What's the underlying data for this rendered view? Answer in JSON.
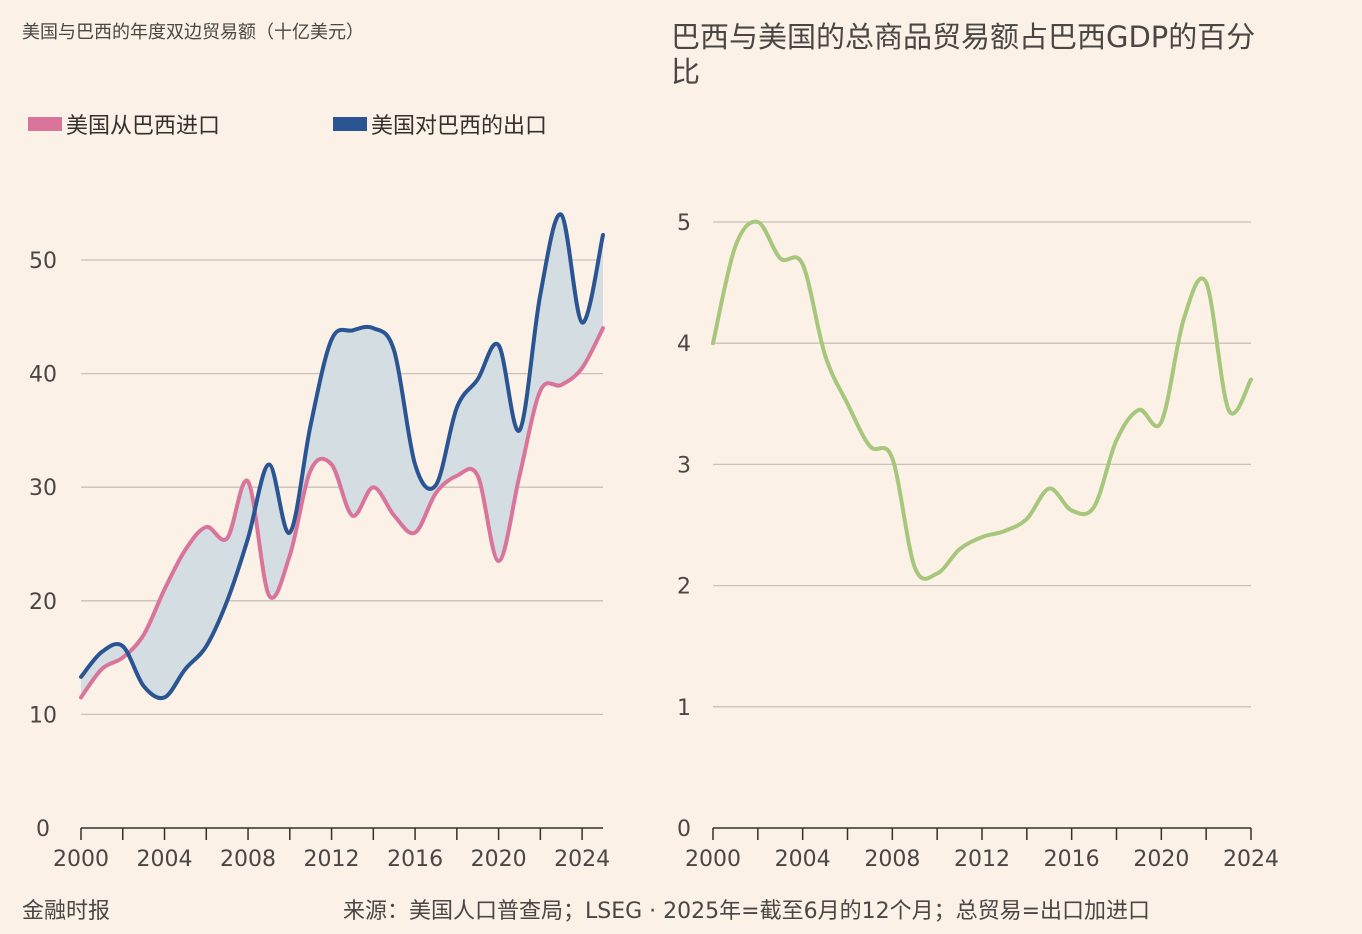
{
  "footer": {
    "brand": "金融时报",
    "source": "来源：美国人口普查局；LSEG · 2025年=截至6月的12个月；总贸易=出口加进口"
  },
  "colors": {
    "background": "#fbf1e7",
    "imports": "#d9759a",
    "exports": "#2a5592",
    "fill_between": "#d3dde2",
    "gdp_share": "#a7c77c",
    "grid": "#c9c2bb",
    "axis": "#33302e"
  },
  "chart_data": [
    {
      "type": "line",
      "title": "美国与巴西的年度双边贸易额（十亿美元）",
      "xlabel": "",
      "ylabel": "",
      "xlim": [
        2000,
        2025
      ],
      "ylim": [
        0,
        55
      ],
      "x_ticks": [
        2000,
        2004,
        2008,
        2012,
        2016,
        2020,
        2024
      ],
      "y_ticks": [
        0,
        10,
        20,
        30,
        40,
        50
      ],
      "grid": true,
      "legend_position": "top-left",
      "fill_between_series": true,
      "x": [
        2000,
        2001,
        2002,
        2003,
        2004,
        2005,
        2006,
        2007,
        2008,
        2009,
        2010,
        2011,
        2012,
        2013,
        2014,
        2015,
        2016,
        2017,
        2018,
        2019,
        2020,
        2021,
        2022,
        2023,
        2024,
        2025
      ],
      "series": [
        {
          "name": "美国从巴西进口",
          "values": [
            11.5,
            14.0,
            15.0,
            17.0,
            21.0,
            24.5,
            26.5,
            25.5,
            30.5,
            20.5,
            24.0,
            31.5,
            32.0,
            27.5,
            30.0,
            27.5,
            26.0,
            29.5,
            31.0,
            31.0,
            23.5,
            31.0,
            38.5,
            39.0,
            40.5,
            44.0
          ]
        },
        {
          "name": "美国对巴西的出口",
          "values": [
            13.3,
            15.5,
            16.0,
            12.5,
            11.5,
            14.0,
            16.0,
            20.0,
            25.5,
            32.0,
            26.0,
            35.5,
            43.0,
            43.8,
            44.0,
            42.0,
            32.0,
            30.2,
            37.0,
            39.5,
            42.5,
            35.0,
            47.0,
            54.0,
            44.5,
            52.2
          ]
        }
      ]
    },
    {
      "type": "line",
      "title": "巴西与美国的总商品贸易额占巴西GDP的百分比",
      "xlabel": "",
      "ylabel": "",
      "xlim": [
        2000,
        2024
      ],
      "ylim": [
        0,
        5.3
      ],
      "x_ticks": [
        2000,
        2004,
        2008,
        2012,
        2016,
        2020,
        2024
      ],
      "y_ticks": [
        0,
        1,
        2,
        3,
        4,
        5
      ],
      "grid": true,
      "x": [
        2000,
        2001,
        2002,
        2003,
        2004,
        2005,
        2006,
        2007,
        2008,
        2009,
        2010,
        2011,
        2012,
        2013,
        2014,
        2015,
        2016,
        2017,
        2018,
        2019,
        2020,
        2021,
        2022,
        2023,
        2024
      ],
      "series": [
        {
          "values": [
            4.0,
            4.8,
            5.0,
            4.7,
            4.65,
            3.9,
            3.5,
            3.15,
            3.05,
            2.15,
            2.1,
            2.3,
            2.4,
            2.45,
            2.55,
            2.8,
            2.62,
            2.65,
            3.2,
            3.45,
            3.35,
            4.2,
            4.5,
            3.45,
            3.7
          ]
        }
      ]
    }
  ]
}
